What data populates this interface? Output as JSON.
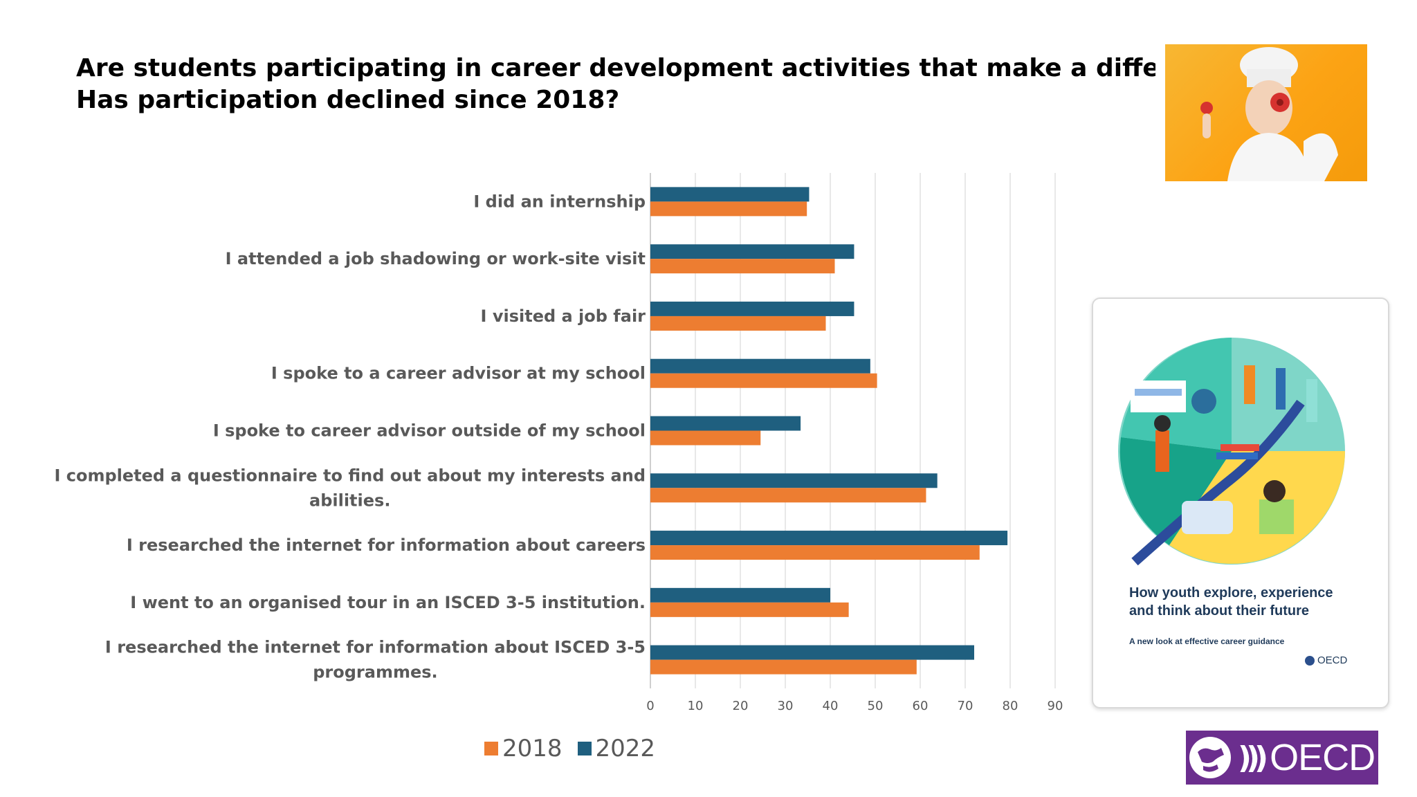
{
  "title_lines": [
    "Are students participating in career development activities that make a difference?",
    "Has participation declined since 2018?"
  ],
  "colors": {
    "series_2018": "#ed7d31",
    "series_2022": "#1f5f7f",
    "grid": "#d9d9d9",
    "text": "#595959"
  },
  "chart_data": {
    "type": "bar",
    "orientation": "horizontal",
    "categories": [
      [
        "I did an internship"
      ],
      [
        "I attended a job shadowing or work-site visit"
      ],
      [
        "I visited a job fair"
      ],
      [
        "I spoke to a career advisor at my school"
      ],
      [
        "I spoke to career advisor outside of my school"
      ],
      [
        "I completed a questionnaire to find out about my interests and",
        "abilities."
      ],
      [
        "I researched the internet for information about careers"
      ],
      [
        "I went to an organised tour in an  ISCED 3-5 institution."
      ],
      [
        "I researched the internet for information about  ISCED 3-5",
        "programmes."
      ]
    ],
    "series": [
      {
        "name": "2022",
        "values": [
          35.3,
          45.3,
          45.3,
          48.9,
          33.4,
          63.8,
          79.4,
          40.0,
          72.0
        ]
      },
      {
        "name": "2018",
        "values": [
          34.8,
          41.0,
          39.0,
          50.4,
          24.5,
          61.3,
          73.2,
          44.1,
          59.2
        ]
      }
    ],
    "legend": [
      "2018",
      "2022"
    ],
    "legend_placement": "bottom",
    "xlim": [
      0,
      90
    ],
    "xticks": [
      0,
      10,
      20,
      30,
      40,
      50,
      60,
      70,
      80,
      90
    ],
    "grid": true
  },
  "cover": {
    "title_lines": [
      "How youth explore, experience",
      "and think about their future"
    ],
    "subtitle": "A new look at effective career guidance",
    "logo_text": "OECD"
  },
  "logo": {
    "text": "OECD"
  }
}
